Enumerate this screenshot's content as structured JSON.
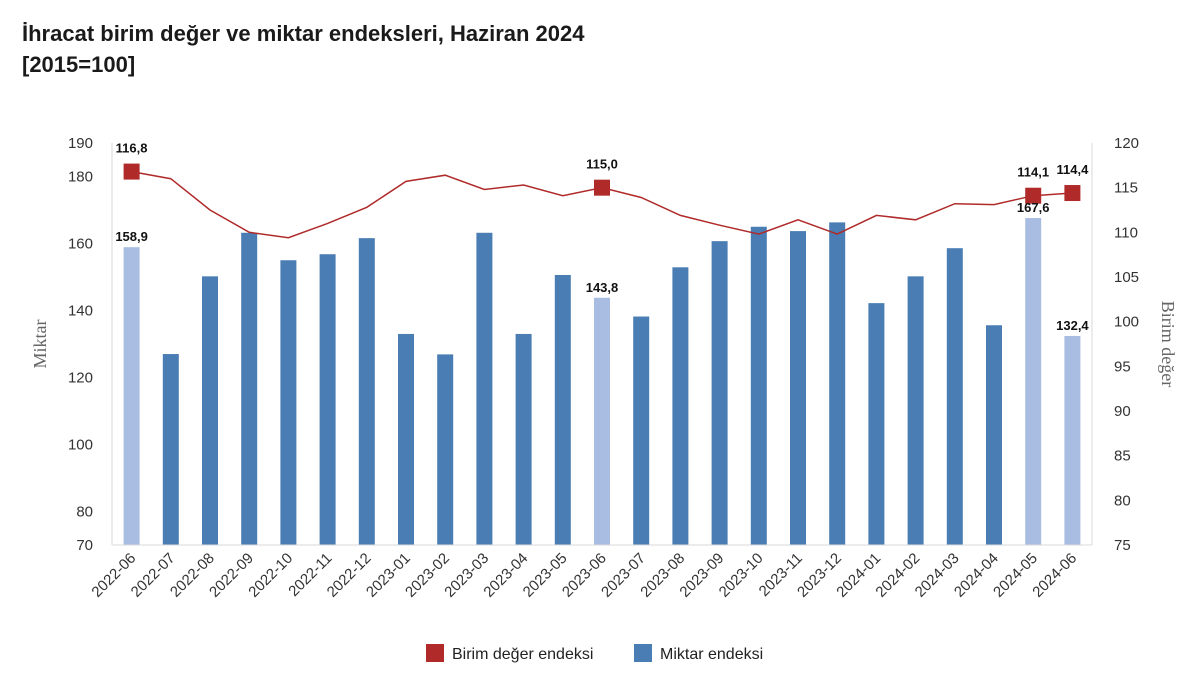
{
  "chart_data": {
    "type": "bar",
    "title": "İhracat birim değer ve miktar endeksleri, Haziran 2024",
    "subtitle": "[2015=100]",
    "categories": [
      "2022-06",
      "2022-07",
      "2022-08",
      "2022-09",
      "2022-10",
      "2022-11",
      "2022-12",
      "2023-01",
      "2023-02",
      "2023-03",
      "2023-04",
      "2023-05",
      "2023-06",
      "2023-07",
      "2023-08",
      "2023-09",
      "2023-10",
      "2023-11",
      "2023-12",
      "2024-01",
      "2024-02",
      "2024-03",
      "2024-04",
      "2024-05",
      "2024-06"
    ],
    "series": [
      {
        "name": "Miktar endeksi",
        "type": "bar",
        "axis": "left",
        "color": "#4a7db3",
        "highlight_color": "#a9bde2",
        "highlight_indices": [
          0,
          12,
          23,
          24
        ],
        "values": [
          158.9,
          127.0,
          150.2,
          163.2,
          155.0,
          156.8,
          161.6,
          133.0,
          126.9,
          163.2,
          133.0,
          150.6,
          143.8,
          138.2,
          152.9,
          160.7,
          165.0,
          163.7,
          166.3,
          142.2,
          150.2,
          158.6,
          135.6,
          167.6,
          132.4
        ]
      },
      {
        "name": "Birim değer endeksi",
        "type": "line",
        "axis": "right",
        "color": "#b02a2a",
        "values": [
          116.8,
          116.0,
          112.5,
          110.0,
          109.4,
          111.0,
          112.8,
          115.7,
          116.4,
          114.8,
          115.3,
          114.1,
          115.0,
          113.9,
          111.9,
          110.8,
          109.8,
          111.4,
          109.8,
          111.9,
          111.4,
          113.2,
          113.1,
          114.1,
          114.4
        ],
        "marker_indices": [
          0,
          12,
          23,
          24
        ]
      }
    ],
    "data_labels": {
      "bars": [
        {
          "index": 0,
          "text": "158,9"
        },
        {
          "index": 12,
          "text": "143,8"
        },
        {
          "index": 23,
          "text": "167,6"
        },
        {
          "index": 24,
          "text": "132,4"
        }
      ],
      "line": [
        {
          "index": 0,
          "text": "116,8"
        },
        {
          "index": 12,
          "text": "115,0"
        },
        {
          "index": 23,
          "text": "114,1"
        },
        {
          "index": 24,
          "text": "114,4"
        }
      ]
    },
    "ylabel": "Miktar",
    "ylabel_right": "Birim değer",
    "ylim": [
      70,
      190
    ],
    "yticks": [
      70,
      80,
      100,
      120,
      140,
      160,
      180,
      190
    ],
    "ylim_right": [
      75,
      120
    ],
    "yticks_right": [
      75,
      80,
      85,
      90,
      95,
      100,
      105,
      110,
      115,
      120
    ],
    "grid": false,
    "legend_position": "bottom-center",
    "legend": [
      {
        "label": "Birim değer endeksi",
        "color": "#b02a2a"
      },
      {
        "label": "Miktar endeksi",
        "color": "#4a7db3"
      }
    ]
  }
}
